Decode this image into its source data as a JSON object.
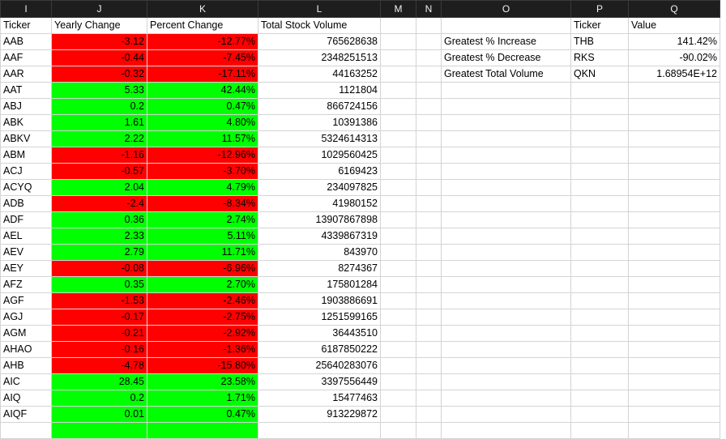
{
  "columns": [
    "I",
    "J",
    "K",
    "L",
    "M",
    "N",
    "O",
    "P",
    "Q"
  ],
  "headers": {
    "ticker": "Ticker",
    "yearly_change": "Yearly Change",
    "percent_change": "Percent Change",
    "total_volume": "Total Stock Volume",
    "summary_ticker": "Ticker",
    "summary_value": "Value"
  },
  "summary": [
    {
      "label": "Greatest % Increase",
      "ticker": "THB",
      "value": "141.42%"
    },
    {
      "label": "Greatest % Decrease",
      "ticker": "RKS",
      "value": "-90.02%"
    },
    {
      "label": "Greatest Total Volume",
      "ticker": "QKN",
      "value": "1.68954E+12"
    }
  ],
  "rows": [
    {
      "ticker": "AAB",
      "change": "-3.12",
      "pct": "-12.77%",
      "volume": "765628638",
      "status": "neg"
    },
    {
      "ticker": "AAF",
      "change": "-0.44",
      "pct": "-7.45%",
      "volume": "2348251513",
      "status": "neg"
    },
    {
      "ticker": "AAR",
      "change": "-0.32",
      "pct": "-17.11%",
      "volume": "44163252",
      "status": "neg"
    },
    {
      "ticker": "AAT",
      "change": "5.33",
      "pct": "42.44%",
      "volume": "1121804",
      "status": "pos"
    },
    {
      "ticker": "ABJ",
      "change": "0.2",
      "pct": "0.47%",
      "volume": "866724156",
      "status": "pos"
    },
    {
      "ticker": "ABK",
      "change": "1.61",
      "pct": "4.80%",
      "volume": "10391386",
      "status": "pos"
    },
    {
      "ticker": "ABKV",
      "change": "2.22",
      "pct": "11.57%",
      "volume": "5324614313",
      "status": "pos"
    },
    {
      "ticker": "ABM",
      "change": "-1.16",
      "pct": "-12.96%",
      "volume": "1029560425",
      "status": "neg"
    },
    {
      "ticker": "ACJ",
      "change": "-0.57",
      "pct": "-3.70%",
      "volume": "6169423",
      "status": "neg"
    },
    {
      "ticker": "ACYQ",
      "change": "2.04",
      "pct": "4.79%",
      "volume": "234097825",
      "status": "pos"
    },
    {
      "ticker": "ADB",
      "change": "-2.4",
      "pct": "-8.34%",
      "volume": "41980152",
      "status": "neg"
    },
    {
      "ticker": "ADF",
      "change": "0.36",
      "pct": "2.74%",
      "volume": "13907867898",
      "status": "pos"
    },
    {
      "ticker": "AEL",
      "change": "2.33",
      "pct": "5.11%",
      "volume": "4339867319",
      "status": "pos"
    },
    {
      "ticker": "AEV",
      "change": "2.79",
      "pct": "11.71%",
      "volume": "843970",
      "status": "pos"
    },
    {
      "ticker": "AEY",
      "change": "-0.08",
      "pct": "-6.96%",
      "volume": "8274367",
      "status": "neg"
    },
    {
      "ticker": "AFZ",
      "change": "0.35",
      "pct": "2.70%",
      "volume": "175801284",
      "status": "pos"
    },
    {
      "ticker": "AGF",
      "change": "-1.53",
      "pct": "-2.46%",
      "volume": "1903886691",
      "status": "neg"
    },
    {
      "ticker": "AGJ",
      "change": "-0.17",
      "pct": "-2.75%",
      "volume": "1251599165",
      "status": "neg"
    },
    {
      "ticker": "AGM",
      "change": "-0.21",
      "pct": "-2.92%",
      "volume": "36443510",
      "status": "neg"
    },
    {
      "ticker": "AHAO",
      "change": "-0.16",
      "pct": "-1.36%",
      "volume": "6187850222",
      "status": "neg"
    },
    {
      "ticker": "AHB",
      "change": "-4.78",
      "pct": "-15.80%",
      "volume": "25640283076",
      "status": "neg"
    },
    {
      "ticker": "AIC",
      "change": "28.45",
      "pct": "23.58%",
      "volume": "3397556449",
      "status": "pos"
    },
    {
      "ticker": "AIQ",
      "change": "0.2",
      "pct": "1.71%",
      "volume": "15477463",
      "status": "pos"
    },
    {
      "ticker": "AIQF",
      "change": "0.01",
      "pct": "0.47%",
      "volume": "913229872",
      "status": "pos"
    },
    {
      "ticker": "",
      "change": "",
      "pct": "",
      "volume": "",
      "status": "pos"
    }
  ],
  "colors": {
    "positive": "#00ff00",
    "negative": "#ff0000",
    "header_bg": "#1e1e1e"
  }
}
